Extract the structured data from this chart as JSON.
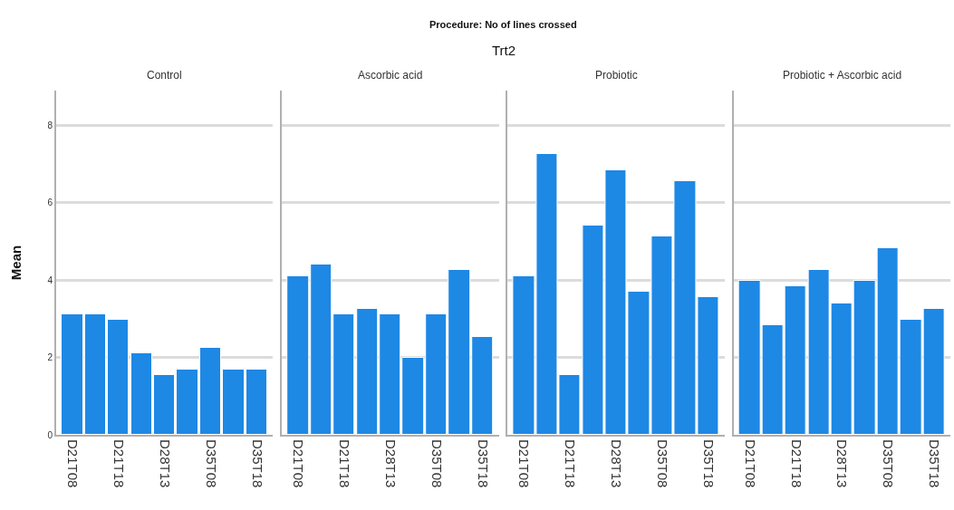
{
  "chart_data": [
    {
      "type": "bar",
      "title": "Control",
      "annotations": [
        "Procedure: No of lines crossed",
        "Trt2"
      ],
      "ylabel": "Mean",
      "categories": [
        "D21T08",
        null,
        "D21T18",
        null,
        "D28T13",
        null,
        "D35T08",
        null,
        "D35T18"
      ],
      "values": [
        3.11,
        3.11,
        2.97,
        2.1,
        1.54,
        1.68,
        2.26,
        1.68,
        1.68
      ],
      "color": "#1e88e5",
      "ylim": [
        0,
        8.9
      ],
      "yticks": [
        0,
        2,
        4,
        6,
        8
      ],
      "grid": "y"
    },
    {
      "type": "bar",
      "title": "Ascorbic acid",
      "categories": [
        "D21T08",
        null,
        "D21T18",
        null,
        "D28T13",
        null,
        "D35T08",
        null,
        "D35T18"
      ],
      "values": [
        4.11,
        4.41,
        3.11,
        3.26,
        3.11,
        1.98,
        3.11,
        4.26,
        2.54
      ],
      "color": "#1e88e5",
      "ylim": [
        0,
        8.9
      ],
      "yticks": [
        0,
        2,
        4,
        6,
        8
      ],
      "grid": "y",
      "tick_labels": "x"
    },
    {
      "type": "bar",
      "title": "Probiotic",
      "categories": [
        "D21T08",
        null,
        "D21T18",
        null,
        "D28T13",
        null,
        "D35T08",
        null,
        "D35T18"
      ],
      "values": [
        4.11,
        7.26,
        1.54,
        5.4,
        6.84,
        3.69,
        5.12,
        6.55,
        3.56
      ],
      "color": "#1e88e5",
      "ylim": [
        0,
        8.9
      ],
      "yticks": [
        0,
        2,
        4,
        6,
        8
      ],
      "grid": "y",
      "tick_labels": "x"
    },
    {
      "type": "bar",
      "title": "Probiotic + Ascorbic acid",
      "categories": [
        "D21T08",
        null,
        "D21T18",
        null,
        "D28T13",
        null,
        "D35T08",
        null,
        "D35T18"
      ],
      "values": [
        3.98,
        2.83,
        3.84,
        4.26,
        3.4,
        3.98,
        4.83,
        2.97,
        3.26
      ],
      "color": "#1e88e5",
      "ylim": [
        0,
        8.9
      ],
      "yticks": [
        0,
        2,
        4,
        6,
        8
      ],
      "grid": "y",
      "tick_labels": "x"
    }
  ]
}
